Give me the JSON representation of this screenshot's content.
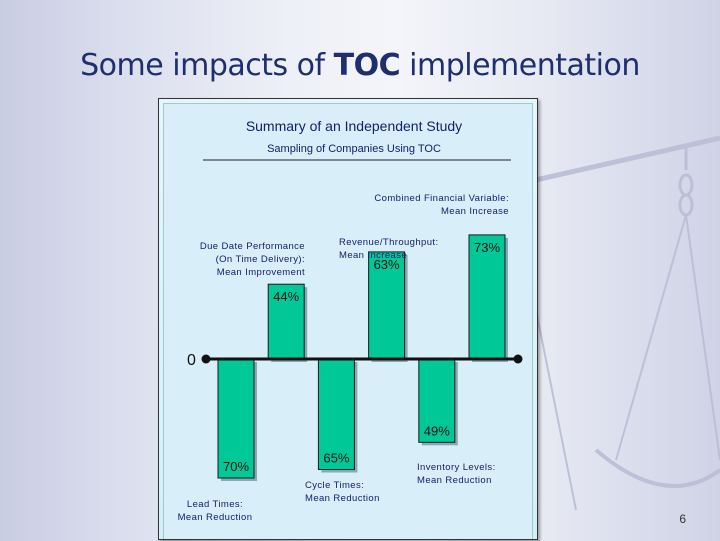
{
  "slide": {
    "title_prefix": "Some impacts of ",
    "title_bold": "TOC",
    "title_suffix": " implementation",
    "page_number": "6"
  },
  "chart_data": {
    "type": "bar",
    "title": "Summary of an Independent Study",
    "subtitle": "Sampling of Companies Using TOC",
    "zero_label": "0",
    "ylim": [
      -80,
      80
    ],
    "bars": [
      {
        "label": [
          "Lead Times:",
          "Mean Reduction"
        ],
        "value": -70,
        "value_label": "70%"
      },
      {
        "label": [
          "Due Date Performance",
          "(On Time Delivery):",
          "Mean Improvement"
        ],
        "value": 44,
        "value_label": "44%"
      },
      {
        "label": [
          "Cycle Times:",
          "Mean Reduction"
        ],
        "value": -65,
        "value_label": "65%"
      },
      {
        "label": [
          "Revenue/Throughput:",
          "Mean Increase"
        ],
        "value": 63,
        "value_label": "63%"
      },
      {
        "label": [
          "Inventory Levels:",
          "Mean Reduction"
        ],
        "value": -49,
        "value_label": "49%"
      },
      {
        "label": [
          "Combined Financial Variable:",
          "Mean Increase"
        ],
        "value": 73,
        "value_label": "73%"
      }
    ],
    "colors": {
      "bar": "#00c896",
      "bar_border": "#1a1a1a",
      "shadow": "#8aa7b5",
      "axis": "#111111",
      "title": "#14206e"
    }
  }
}
